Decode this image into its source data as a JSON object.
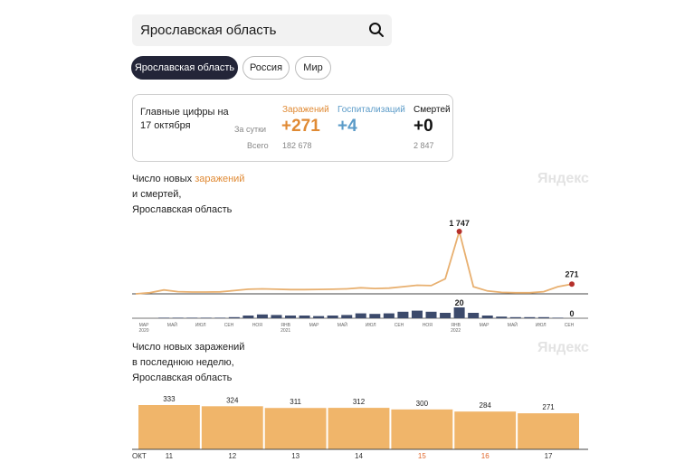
{
  "search": {
    "value": "Ярославская область"
  },
  "region_tabs": [
    "Ярославская область",
    "Россия",
    "Мир"
  ],
  "stats": {
    "headline": "Главные цифры на 17 октября",
    "row_labels": {
      "daily": "За сутки",
      "total": "Всего"
    },
    "columns": [
      {
        "label": "Заражений",
        "daily": "+271",
        "total": "182 678",
        "color": "#e08a34"
      },
      {
        "label": "Госпитализаций",
        "daily": "+4",
        "total": "",
        "color": "#5b9bc8"
      },
      {
        "label": "Смертей",
        "daily": "+0",
        "total": "2 847",
        "color": "#111111"
      }
    ]
  },
  "chart1": {
    "title_line1_prefix": "Число новых ",
    "title_line1_highlight": "заражений",
    "title_line2": "и смертей,",
    "title_line3": "Ярославская область",
    "watermark": "Яндекс"
  },
  "chart2": {
    "title_lines": [
      "Число новых заражений",
      "в последнюю неделю,",
      "Ярославская область"
    ],
    "watermark": "Яндекс"
  },
  "chart_data": [
    {
      "type": "line",
      "series": [
        {
          "name": "заражений",
          "x": [
            "2020-03",
            "2020-04",
            "2020-05",
            "2020-06",
            "2020-07",
            "2020-08",
            "2020-09",
            "2020-10",
            "2020-11",
            "2020-12",
            "2021-01",
            "2021-02",
            "2021-03",
            "2021-04",
            "2021-05",
            "2021-06",
            "2021-07",
            "2021-08",
            "2021-09",
            "2021-10",
            "2021-11",
            "2021-12",
            "2022-01",
            "2022-02",
            "2022-03",
            "2022-04",
            "2022-05",
            "2022-06",
            "2022-07",
            "2022-08",
            "2022-09",
            "2022-10"
          ],
          "values": [
            0,
            30,
            110,
            60,
            50,
            50,
            55,
            90,
            130,
            140,
            130,
            120,
            120,
            125,
            130,
            140,
            170,
            150,
            160,
            200,
            240,
            230,
            420,
            1747,
            200,
            80,
            40,
            30,
            30,
            60,
            200,
            271
          ]
        },
        {
          "name": "смертей",
          "values": [
            0,
            0,
            1,
            1,
            1,
            1,
            1,
            2,
            5,
            7,
            6,
            5,
            5,
            4,
            5,
            6,
            9,
            8,
            9,
            12,
            14,
            12,
            10,
            20,
            10,
            5,
            3,
            2,
            2,
            2,
            1,
            0
          ]
        }
      ],
      "labels": {
        "peak": "1 747",
        "last": "271",
        "deaths_peak": "20",
        "deaths_last": "0"
      },
      "x_ticks": [
        [
          "МАР",
          "2020"
        ],
        [
          "МАЙ",
          ""
        ],
        [
          "ИЮЛ",
          ""
        ],
        [
          "СЕН",
          ""
        ],
        [
          "НОЯ",
          ""
        ],
        [
          "ЯНВ",
          "2021"
        ],
        [
          "МАР",
          ""
        ],
        [
          "МАЙ",
          ""
        ],
        [
          "ИЮЛ",
          ""
        ],
        [
          "СЕН",
          ""
        ],
        [
          "НОЯ",
          ""
        ],
        [
          "ЯНВ",
          "2022"
        ],
        [
          "МАР",
          ""
        ],
        [
          "МАЙ",
          ""
        ],
        [
          "ИЮЛ",
          ""
        ],
        [
          "СЕН",
          ""
        ]
      ]
    },
    {
      "type": "bar",
      "axis_label": "ОКТ",
      "categories": [
        "11",
        "12",
        "13",
        "14",
        "15",
        "16",
        "17"
      ],
      "values": [
        333,
        324,
        311,
        312,
        300,
        284,
        271
      ],
      "weekend_categories": [
        "15",
        "16"
      ],
      "colors": {
        "bar": "#f0b56a",
        "weekday": "#333333",
        "weekend": "#e0662a"
      }
    }
  ]
}
